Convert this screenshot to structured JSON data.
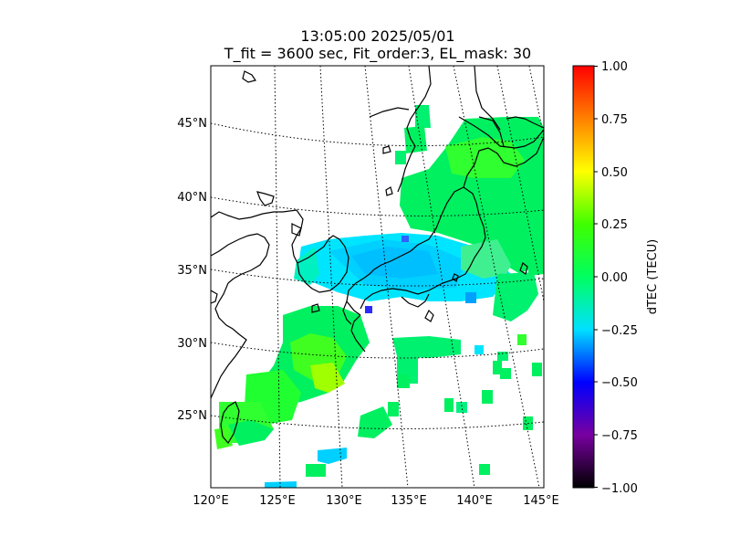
{
  "title": {
    "line1": "13:05:00 2025/05/01",
    "line2": "T_fit = 3600 sec, Fit_order:3, EL_mask: 30"
  },
  "map": {
    "lon_range": [
      120,
      145
    ],
    "lat_range": [
      20,
      49
    ],
    "lon_labels": [
      "120°E",
      "125°E",
      "130°E",
      "135°E",
      "140°E",
      "145°E"
    ],
    "lat_labels": [
      "25°N",
      "30°N",
      "35°N",
      "40°N",
      "45°N"
    ],
    "gridlines": "dotted"
  },
  "colorbar": {
    "label": "dTEC (TECU)",
    "range": [
      -1.0,
      1.0
    ],
    "ticks": [
      "1.00",
      "0.75",
      "0.50",
      "0.25",
      "0.00",
      "−0.25",
      "−0.50",
      "−0.75",
      "−1.00"
    ],
    "colormap": "nipy_spectral",
    "stops": [
      "#000000",
      "#7800a0",
      "#0000ff",
      "#00e0ff",
      "#00ff60",
      "#40ff00",
      "#ffff00",
      "#ff8000",
      "#ff0000"
    ]
  }
}
